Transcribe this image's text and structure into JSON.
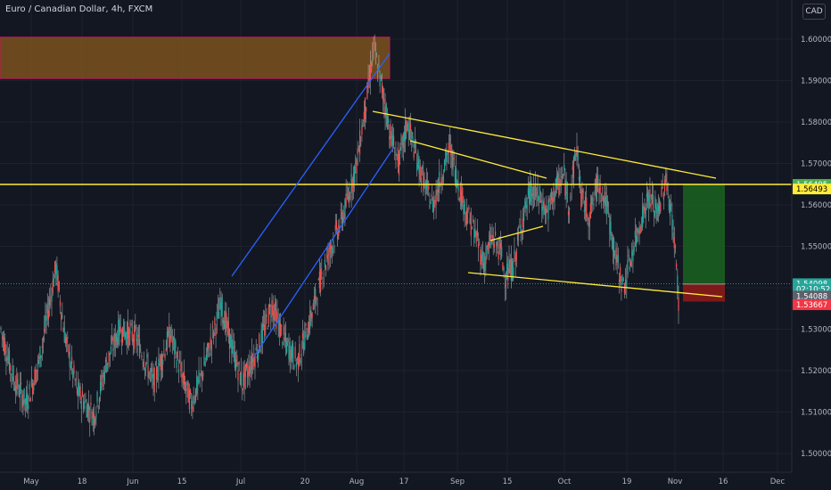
{
  "header": {
    "title": "Euro / Canadian Dollar, 4h, FXCM",
    "currency_button": "CAD"
  },
  "colors": {
    "background": "#131722",
    "up": "#26a69a",
    "down": "#ef5350",
    "wick": "#c8c8c8",
    "trendline": "#ffeb3b",
    "channel": "#2962ff",
    "supply_zone": "#8a5a1e",
    "target_zone": "#1b5e20",
    "stop_zone": "#8b1a1a"
  },
  "chart_data": {
    "type": "candlestick",
    "symbol": "Euro / Canadian Dollar, 4h, FXCM",
    "x_ticks": [
      "May",
      "18",
      "Jun",
      "15",
      "Jul",
      "20",
      "Aug",
      "17",
      "Sep",
      "15",
      "Oct",
      "19",
      "Nov",
      "16",
      "Dec"
    ],
    "y_ticks": [
      "1.60000",
      "1.59000",
      "1.58000",
      "1.57000",
      "1.56000",
      "1.55000",
      "1.54000",
      "1.53000",
      "1.52000",
      "1.51000",
      "1.50000"
    ],
    "ylim": [
      1.4955,
      1.6055
    ],
    "price_path": [
      [
        0,
        1.53
      ],
      [
        3,
        1.518
      ],
      [
        6,
        1.512
      ],
      [
        9,
        1.522
      ],
      [
        13,
        1.545
      ],
      [
        15,
        1.529
      ],
      [
        18,
        1.515
      ],
      [
        22,
        1.509
      ],
      [
        25,
        1.522
      ],
      [
        28,
        1.53
      ],
      [
        32,
        1.528
      ],
      [
        36,
        1.517
      ],
      [
        40,
        1.529
      ],
      [
        43,
        1.518
      ],
      [
        45,
        1.512
      ],
      [
        48,
        1.521
      ],
      [
        52,
        1.536
      ],
      [
        55,
        1.524
      ],
      [
        57,
        1.517
      ],
      [
        61,
        1.526
      ],
      [
        64,
        1.536
      ],
      [
        67,
        1.527
      ],
      [
        70,
        1.522
      ],
      [
        73,
        1.532
      ],
      [
        76,
        1.544
      ],
      [
        78,
        1.55
      ],
      [
        81,
        1.558
      ],
      [
        84,
        1.57
      ],
      [
        87,
        1.59
      ],
      [
        88,
        1.598
      ],
      [
        90,
        1.588
      ],
      [
        92,
        1.577
      ],
      [
        94,
        1.57
      ],
      [
        96,
        1.58
      ],
      [
        98,
        1.572
      ],
      [
        100,
        1.565
      ],
      [
        102,
        1.56
      ],
      [
        104,
        1.567
      ],
      [
        106,
        1.574
      ],
      [
        108,
        1.565
      ],
      [
        110,
        1.558
      ],
      [
        112,
        1.553
      ],
      [
        114,
        1.546
      ],
      [
        116,
        1.552
      ],
      [
        118,
        1.549
      ],
      [
        119,
        1.543
      ],
      [
        121,
        1.545
      ],
      [
        123,
        1.556
      ],
      [
        125,
        1.563
      ],
      [
        127,
        1.562
      ],
      [
        129,
        1.558
      ],
      [
        131,
        1.564
      ],
      [
        133,
        1.567
      ],
      [
        134,
        1.56
      ],
      [
        135,
        1.567
      ],
      [
        136,
        1.574
      ],
      [
        137,
        1.562
      ],
      [
        139,
        1.557
      ],
      [
        141,
        1.566
      ],
      [
        143,
        1.56
      ],
      [
        145,
        1.548
      ],
      [
        147,
        1.54
      ],
      [
        149,
        1.548
      ],
      [
        151,
        1.556
      ],
      [
        153,
        1.562
      ],
      [
        155,
        1.558
      ],
      [
        157,
        1.566
      ],
      [
        158,
        1.56
      ],
      [
        159,
        1.552
      ],
      [
        160,
        1.537
      ]
    ],
    "price_path_units": "bars_since_first_visible, price",
    "horizontal_level": 1.56495,
    "zones": {
      "supply": [
        1.5905,
        1.6005
      ],
      "long_position": {
        "entry": 1.5409,
        "target": 1.56495,
        "stop": 1.53667
      }
    },
    "price_tags": [
      {
        "value": "1.56495",
        "price": 1.56495,
        "bg": "#4caf50",
        "fg": "#ffffff"
      },
      {
        "value": "1.56493",
        "price": 1.56385,
        "bg": "#ffeb3b",
        "fg": "#000000"
      },
      {
        "value": "1.54098",
        "price": 1.54098,
        "bg": "#26a69a",
        "fg": "#ffffff"
      },
      {
        "value": "02:10:52",
        "price": 1.53965,
        "bg": "#26a69a",
        "fg": "#ffffff"
      },
      {
        "value": "1.54088",
        "price": 1.538,
        "bg": "#5d606b",
        "fg": "#ffffff"
      },
      {
        "value": "1.53667",
        "price": 1.5359,
        "bg": "#f23645",
        "fg": "#ffffff"
      }
    ]
  }
}
